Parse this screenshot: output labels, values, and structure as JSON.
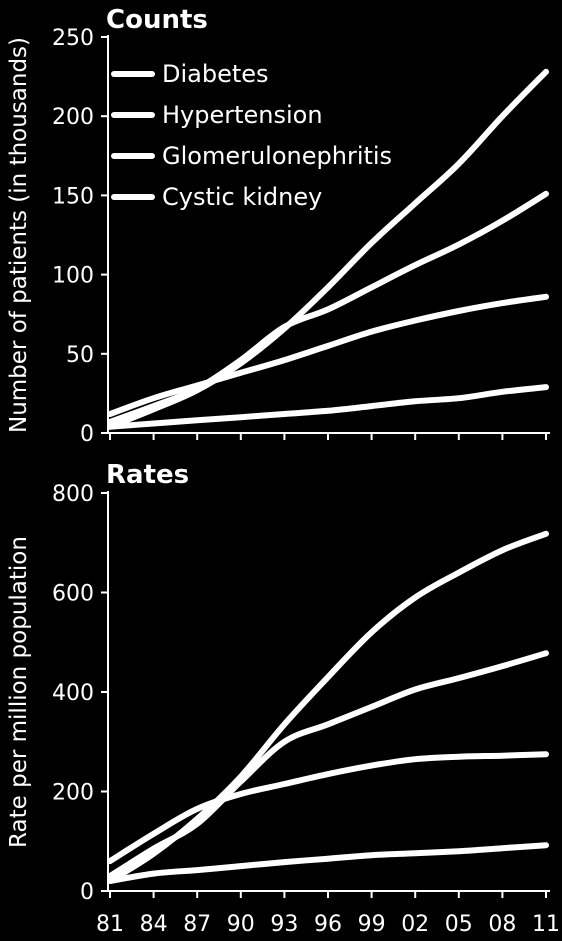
{
  "chart_data": [
    {
      "type": "line",
      "title": "Counts",
      "xlabel": "",
      "ylabel": "Number of patients (in thousands)",
      "ylim": [
        0,
        250
      ],
      "yticks": [
        0,
        50,
        100,
        150,
        200,
        250
      ],
      "grid": false,
      "legend": "top-left",
      "x": [
        1981,
        1984,
        1987,
        1990,
        1993,
        1996,
        1999,
        2002,
        2005,
        2008,
        2011
      ],
      "series": [
        {
          "name": "Diabetes",
          "values": [
            4,
            15,
            27,
            44,
            66,
            92,
            120,
            145,
            170,
            200,
            228
          ]
        },
        {
          "name": "Hypertension",
          "values": [
            7,
            17,
            28,
            46,
            67,
            78,
            92,
            106,
            119,
            134,
            151
          ]
        },
        {
          "name": "Glomerulonephritis",
          "values": [
            12,
            22,
            30,
            38,
            46,
            55,
            64,
            71,
            77,
            82,
            86
          ]
        },
        {
          "name": "Cystic kidney",
          "values": [
            4,
            6,
            8,
            10,
            12,
            14,
            17,
            20,
            22,
            26,
            29
          ]
        }
      ]
    },
    {
      "type": "line",
      "title": "Rates",
      "xlabel": "",
      "ylabel": "Rate per million population",
      "ylim": [
        0,
        800
      ],
      "yticks": [
        0,
        200,
        400,
        600,
        800
      ],
      "grid": false,
      "x": [
        1981,
        1984,
        1987,
        1990,
        1993,
        1996,
        1999,
        2002,
        2005,
        2008,
        2011
      ],
      "xticklabels": [
        "81",
        "84",
        "87",
        "90",
        "93",
        "96",
        "99",
        "02",
        "05",
        "08",
        "11"
      ],
      "series": [
        {
          "name": "Diabetes",
          "values": [
            20,
            75,
            145,
            230,
            335,
            430,
            520,
            590,
            640,
            685,
            718
          ]
        },
        {
          "name": "Hypertension",
          "values": [
            30,
            85,
            135,
            220,
            300,
            335,
            370,
            405,
            428,
            452,
            478
          ]
        },
        {
          "name": "Glomerulonephritis",
          "values": [
            60,
            115,
            165,
            195,
            215,
            235,
            252,
            265,
            270,
            272,
            275
          ]
        },
        {
          "name": "Cystic kidney",
          "values": [
            20,
            35,
            42,
            50,
            58,
            65,
            72,
            76,
            80,
            86,
            92
          ]
        }
      ]
    }
  ],
  "colors": {
    "background": "#000000",
    "line": "#ffffff",
    "text": "#ffffff"
  }
}
